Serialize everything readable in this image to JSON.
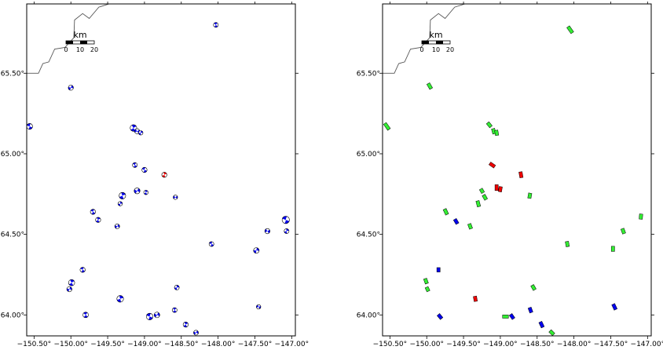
{
  "lon_range": [
    -150.6,
    -146.95
  ],
  "lat_range": [
    63.87,
    65.93
  ],
  "x_ticks": [
    {
      "lon": -150.5,
      "label": "−150.50°"
    },
    {
      "lon": -150.0,
      "label": "−150.00°"
    },
    {
      "lon": -149.5,
      "label": "−149.50°"
    },
    {
      "lon": -149.0,
      "label": "−149.00°"
    },
    {
      "lon": -148.5,
      "label": "−148.50°"
    },
    {
      "lon": -148.0,
      "label": "−148.00°"
    },
    {
      "lon": -147.5,
      "label": "−147.50°"
    },
    {
      "lon": -147.0,
      "label": "−147.00°"
    }
  ],
  "y_ticks": [
    {
      "lat": 64.0,
      "label": "64.00°"
    },
    {
      "lat": 64.5,
      "label": "64.50°"
    },
    {
      "lat": 65.0,
      "label": "65.00°"
    },
    {
      "lat": 65.5,
      "label": "65.50°"
    }
  ],
  "scale_bar": {
    "unit": "km",
    "labels": [
      "0",
      "10",
      "20"
    ]
  },
  "colors": {
    "blue": "#0000ee",
    "red": "#ee0000",
    "green": "#33ee33",
    "coast": "#555555"
  },
  "coastline": [
    [
      -150.6,
      65.5
    ],
    [
      -150.44,
      65.5
    ],
    [
      -150.38,
      65.56
    ],
    [
      -150.3,
      65.57
    ],
    [
      -150.22,
      65.65
    ],
    [
      -150.08,
      65.66
    ],
    [
      -149.96,
      65.72
    ],
    [
      -149.95,
      65.83
    ],
    [
      -149.84,
      65.87
    ],
    [
      -149.75,
      65.84
    ],
    [
      -149.62,
      65.91
    ],
    [
      -149.48,
      65.93
    ]
  ],
  "mechanisms": [
    {
      "lon": -148.03,
      "lat": 65.8,
      "r": 0.033,
      "color": "blue",
      "rot": 40
    },
    {
      "lon": -150.0,
      "lat": 65.41,
      "r": 0.035,
      "color": "blue",
      "rot": 110
    },
    {
      "lon": -150.56,
      "lat": 65.17,
      "r": 0.04,
      "color": "blue",
      "rot": 20
    },
    {
      "lon": -149.15,
      "lat": 65.16,
      "r": 0.045,
      "color": "blue",
      "rot": 60
    },
    {
      "lon": -149.1,
      "lat": 65.14,
      "r": 0.035,
      "color": "blue",
      "rot": 150
    },
    {
      "lon": -149.05,
      "lat": 65.13,
      "r": 0.03,
      "color": "blue",
      "rot": 90
    },
    {
      "lon": -149.13,
      "lat": 64.93,
      "r": 0.033,
      "color": "blue",
      "rot": 30
    },
    {
      "lon": -149.0,
      "lat": 64.9,
      "r": 0.035,
      "color": "blue",
      "rot": 200
    },
    {
      "lon": -148.73,
      "lat": 64.87,
      "r": 0.035,
      "color": "red",
      "rot": 70
    },
    {
      "lon": -149.1,
      "lat": 64.77,
      "r": 0.04,
      "color": "blue",
      "rot": 120
    },
    {
      "lon": -148.98,
      "lat": 64.76,
      "r": 0.03,
      "color": "blue",
      "rot": 60
    },
    {
      "lon": -149.3,
      "lat": 64.74,
      "r": 0.045,
      "color": "blue",
      "rot": 250
    },
    {
      "lon": -149.33,
      "lat": 64.69,
      "r": 0.03,
      "color": "blue",
      "rot": 90
    },
    {
      "lon": -148.58,
      "lat": 64.73,
      "r": 0.03,
      "color": "blue",
      "rot": 140
    },
    {
      "lon": -149.7,
      "lat": 64.64,
      "r": 0.035,
      "color": "blue",
      "rot": 30
    },
    {
      "lon": -149.63,
      "lat": 64.59,
      "r": 0.035,
      "color": "blue",
      "rot": 60
    },
    {
      "lon": -149.37,
      "lat": 64.55,
      "r": 0.033,
      "color": "blue",
      "rot": 300
    },
    {
      "lon": -147.08,
      "lat": 64.59,
      "r": 0.05,
      "color": "blue",
      "rot": 20
    },
    {
      "lon": -147.07,
      "lat": 64.52,
      "r": 0.033,
      "color": "blue",
      "rot": 80
    },
    {
      "lon": -147.33,
      "lat": 64.52,
      "r": 0.035,
      "color": "blue",
      "rot": 150
    },
    {
      "lon": -148.09,
      "lat": 64.44,
      "r": 0.033,
      "color": "blue",
      "rot": 200
    },
    {
      "lon": -147.48,
      "lat": 64.4,
      "r": 0.038,
      "color": "blue",
      "rot": 100
    },
    {
      "lon": -149.84,
      "lat": 64.28,
      "r": 0.035,
      "color": "blue",
      "rot": 30
    },
    {
      "lon": -149.99,
      "lat": 64.2,
      "r": 0.042,
      "color": "blue",
      "rot": 60
    },
    {
      "lon": -150.02,
      "lat": 64.16,
      "r": 0.035,
      "color": "blue",
      "rot": 110
    },
    {
      "lon": -148.56,
      "lat": 64.17,
      "r": 0.033,
      "color": "blue",
      "rot": 90
    },
    {
      "lon": -149.33,
      "lat": 64.1,
      "r": 0.045,
      "color": "blue",
      "rot": 75
    },
    {
      "lon": -147.45,
      "lat": 64.05,
      "r": 0.03,
      "color": "blue",
      "rot": 160
    },
    {
      "lon": -148.59,
      "lat": 64.03,
      "r": 0.033,
      "color": "blue",
      "rot": 45
    },
    {
      "lon": -149.8,
      "lat": 64.0,
      "r": 0.038,
      "color": "blue",
      "rot": 220
    },
    {
      "lon": -148.93,
      "lat": 63.99,
      "r": 0.045,
      "color": "blue",
      "rot": 20
    },
    {
      "lon": -148.83,
      "lat": 64.0,
      "r": 0.038,
      "color": "blue",
      "rot": 120
    },
    {
      "lon": -148.44,
      "lat": 63.94,
      "r": 0.035,
      "color": "blue",
      "rot": 60
    },
    {
      "lon": -148.3,
      "lat": 63.89,
      "r": 0.033,
      "color": "blue",
      "rot": 300
    }
  ],
  "bars": [
    {
      "lon": -148.05,
      "lat": 65.77,
      "len": 0.1,
      "rot": 55,
      "color": "green"
    },
    {
      "lon": -149.96,
      "lat": 65.42,
      "len": 0.08,
      "rot": 60,
      "color": "green"
    },
    {
      "lon": -150.54,
      "lat": 65.17,
      "len": 0.1,
      "rot": 55,
      "color": "green"
    },
    {
      "lon": -149.15,
      "lat": 65.18,
      "len": 0.07,
      "rot": 50,
      "color": "green"
    },
    {
      "lon": -149.09,
      "lat": 65.14,
      "len": 0.07,
      "rot": 75,
      "color": "green"
    },
    {
      "lon": -149.05,
      "lat": 65.13,
      "len": 0.07,
      "rot": 80,
      "color": "green"
    },
    {
      "lon": -149.11,
      "lat": 64.93,
      "len": 0.08,
      "rot": 35,
      "color": "red"
    },
    {
      "lon": -148.72,
      "lat": 64.87,
      "len": 0.08,
      "rot": 80,
      "color": "red"
    },
    {
      "lon": -149.05,
      "lat": 64.79,
      "len": 0.08,
      "rot": 90,
      "color": "red"
    },
    {
      "lon": -149.0,
      "lat": 64.78,
      "len": 0.07,
      "rot": 100,
      "color": "red"
    },
    {
      "lon": -149.25,
      "lat": 64.77,
      "len": 0.06,
      "rot": 60,
      "color": "green"
    },
    {
      "lon": -149.21,
      "lat": 64.73,
      "len": 0.07,
      "rot": 60,
      "color": "green"
    },
    {
      "lon": -149.3,
      "lat": 64.69,
      "len": 0.08,
      "rot": 75,
      "color": "green"
    },
    {
      "lon": -148.6,
      "lat": 64.74,
      "len": 0.07,
      "rot": 100,
      "color": "green"
    },
    {
      "lon": -149.74,
      "lat": 64.64,
      "len": 0.08,
      "rot": 65,
      "color": "green"
    },
    {
      "lon": -149.6,
      "lat": 64.58,
      "len": 0.07,
      "rot": 60,
      "color": "blue"
    },
    {
      "lon": -149.41,
      "lat": 64.55,
      "len": 0.07,
      "rot": 70,
      "color": "green"
    },
    {
      "lon": -147.09,
      "lat": 64.61,
      "len": 0.07,
      "rot": 95,
      "color": "green"
    },
    {
      "lon": -147.33,
      "lat": 64.52,
      "len": 0.07,
      "rot": 70,
      "color": "green"
    },
    {
      "lon": -148.09,
      "lat": 64.44,
      "len": 0.07,
      "rot": 80,
      "color": "green"
    },
    {
      "lon": -147.47,
      "lat": 64.41,
      "len": 0.07,
      "rot": 90,
      "color": "green"
    },
    {
      "lon": -149.84,
      "lat": 64.28,
      "len": 0.06,
      "rot": 90,
      "color": "blue"
    },
    {
      "lon": -150.01,
      "lat": 64.21,
      "len": 0.07,
      "rot": 70,
      "color": "green"
    },
    {
      "lon": -149.99,
      "lat": 64.16,
      "len": 0.06,
      "rot": 65,
      "color": "green"
    },
    {
      "lon": -148.55,
      "lat": 64.17,
      "len": 0.07,
      "rot": 60,
      "color": "green"
    },
    {
      "lon": -149.34,
      "lat": 64.1,
      "len": 0.07,
      "rot": 80,
      "color": "red"
    },
    {
      "lon": -147.45,
      "lat": 64.05,
      "len": 0.08,
      "rot": 65,
      "color": "blue"
    },
    {
      "lon": -148.59,
      "lat": 64.03,
      "len": 0.07,
      "rot": 70,
      "color": "blue"
    },
    {
      "lon": -149.82,
      "lat": 63.99,
      "len": 0.07,
      "rot": 50,
      "color": "blue"
    },
    {
      "lon": -148.93,
      "lat": 63.99,
      "len": 0.08,
      "rot": 0,
      "color": "green"
    },
    {
      "lon": -148.84,
      "lat": 63.99,
      "len": 0.07,
      "rot": 55,
      "color": "blue"
    },
    {
      "lon": -148.44,
      "lat": 63.94,
      "len": 0.08,
      "rot": 65,
      "color": "blue"
    },
    {
      "lon": -148.3,
      "lat": 63.89,
      "len": 0.07,
      "rot": 45,
      "color": "green"
    }
  ]
}
